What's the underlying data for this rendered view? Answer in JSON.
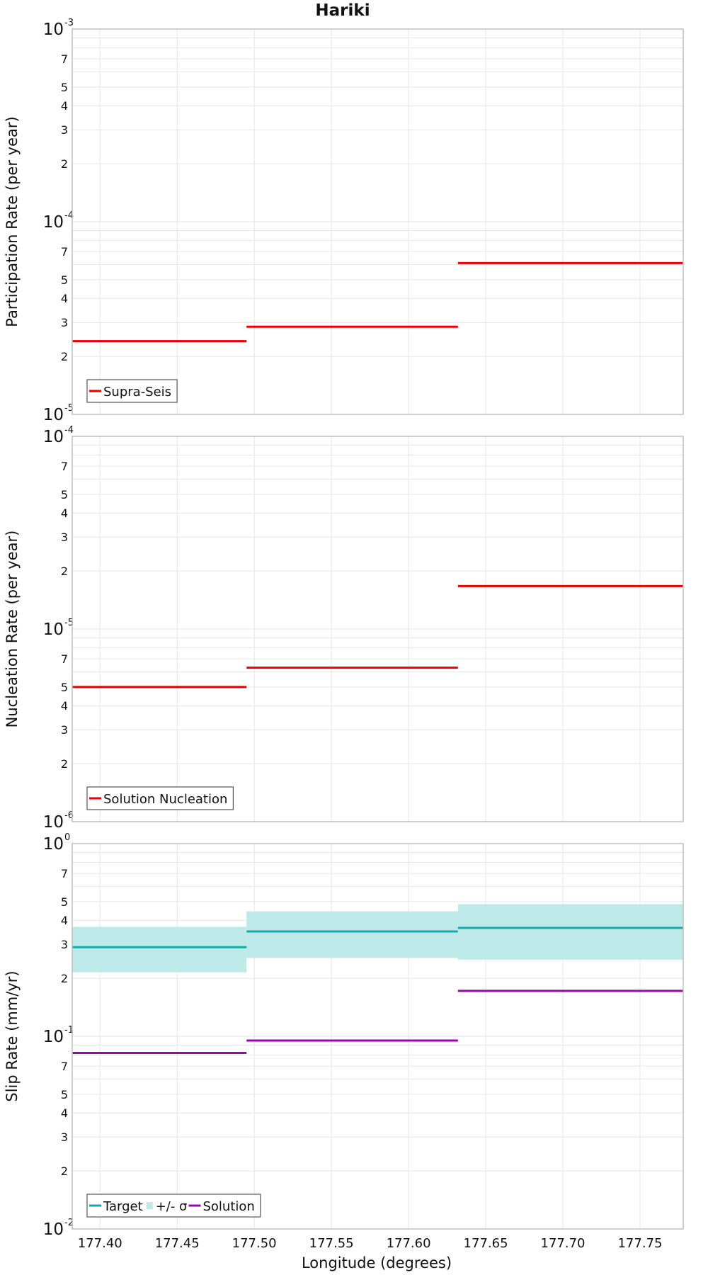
{
  "figure_title": "Hariki",
  "xlabel": "Longitude (degrees)",
  "x_tick_labels": [
    "177.40",
    "177.45",
    "177.50",
    "177.55",
    "177.60",
    "177.65",
    "177.70",
    "177.75"
  ],
  "colors": {
    "supra_seis": "#e60000",
    "nucleation": "#e60000",
    "target": "#17a9a9",
    "band": "#bde9e9",
    "solution": "#a000b4",
    "grid": "#e6e6e6",
    "frame": "#bfbfbf"
  },
  "chart_data": [
    {
      "type": "line",
      "style": "step",
      "title": "Hariki",
      "ylabel": "Participation Rate (per year)",
      "yscale": "log",
      "xlim": [
        177.382,
        177.778
      ],
      "ylim": [
        1e-05,
        0.001
      ],
      "grid": true,
      "legend_position": "bottom-left",
      "x_edges": [
        177.382,
        177.495,
        177.632,
        177.778
      ],
      "series": [
        {
          "name": "Supra-Seis",
          "values": [
            2.4e-05,
            2.85e-05,
            6.1e-05
          ]
        }
      ]
    },
    {
      "type": "line",
      "style": "step",
      "ylabel": "Nucleation Rate (per year)",
      "yscale": "log",
      "xlim": [
        177.382,
        177.778
      ],
      "ylim": [
        1e-06,
        0.0001
      ],
      "grid": true,
      "legend_position": "bottom-left",
      "x_edges": [
        177.382,
        177.495,
        177.632,
        177.778
      ],
      "series": [
        {
          "name": "Solution Nucleation",
          "values": [
            5e-06,
            6.3e-06,
            1.67e-05
          ]
        }
      ]
    },
    {
      "type": "line",
      "style": "step",
      "ylabel": "Slip Rate (mm/yr)",
      "xlabel": "Longitude (degrees)",
      "yscale": "log",
      "xlim": [
        177.382,
        177.778
      ],
      "ylim": [
        0.01,
        1
      ],
      "grid": true,
      "legend_position": "bottom-left",
      "x_edges": [
        177.382,
        177.495,
        177.632,
        177.778
      ],
      "series": [
        {
          "name": "Target",
          "values": [
            0.29,
            0.35,
            0.365
          ]
        },
        {
          "name": "+/- σ",
          "lower": [
            0.215,
            0.255,
            0.25
          ],
          "upper": [
            0.37,
            0.445,
            0.485
          ]
        },
        {
          "name": "Solution",
          "values": [
            0.082,
            0.095,
            0.172
          ]
        }
      ]
    }
  ],
  "panels": [
    {
      "y_major_labels": [
        {
          "base": "10",
          "exp": "-5"
        },
        {
          "base": "10",
          "exp": "-4"
        },
        {
          "base": "10",
          "exp": "-3"
        }
      ],
      "y_minor_labels": [
        "2",
        "3",
        "4",
        "5",
        "7"
      ],
      "legend": [
        {
          "label": "Supra-Seis",
          "icon": "line-icon"
        }
      ]
    },
    {
      "y_major_labels": [
        {
          "base": "10",
          "exp": "-6"
        },
        {
          "base": "10",
          "exp": "-5"
        },
        {
          "base": "10",
          "exp": "-4"
        }
      ],
      "y_minor_labels": [
        "2",
        "3",
        "4",
        "5",
        "7"
      ],
      "legend": [
        {
          "label": "Solution Nucleation",
          "icon": "line-icon"
        }
      ]
    },
    {
      "y_major_labels": [
        {
          "base": "10",
          "exp": "-2"
        },
        {
          "base": "10",
          "exp": "-1"
        },
        {
          "base": "10",
          "exp": "0"
        }
      ],
      "y_minor_labels": [
        "2",
        "3",
        "4",
        "5",
        "7"
      ],
      "legend": [
        {
          "label": "Target",
          "icon": "line-icon"
        },
        {
          "label": "+/- σ",
          "icon": "square-icon"
        },
        {
          "label": "Solution",
          "icon": "line-icon"
        }
      ]
    }
  ]
}
